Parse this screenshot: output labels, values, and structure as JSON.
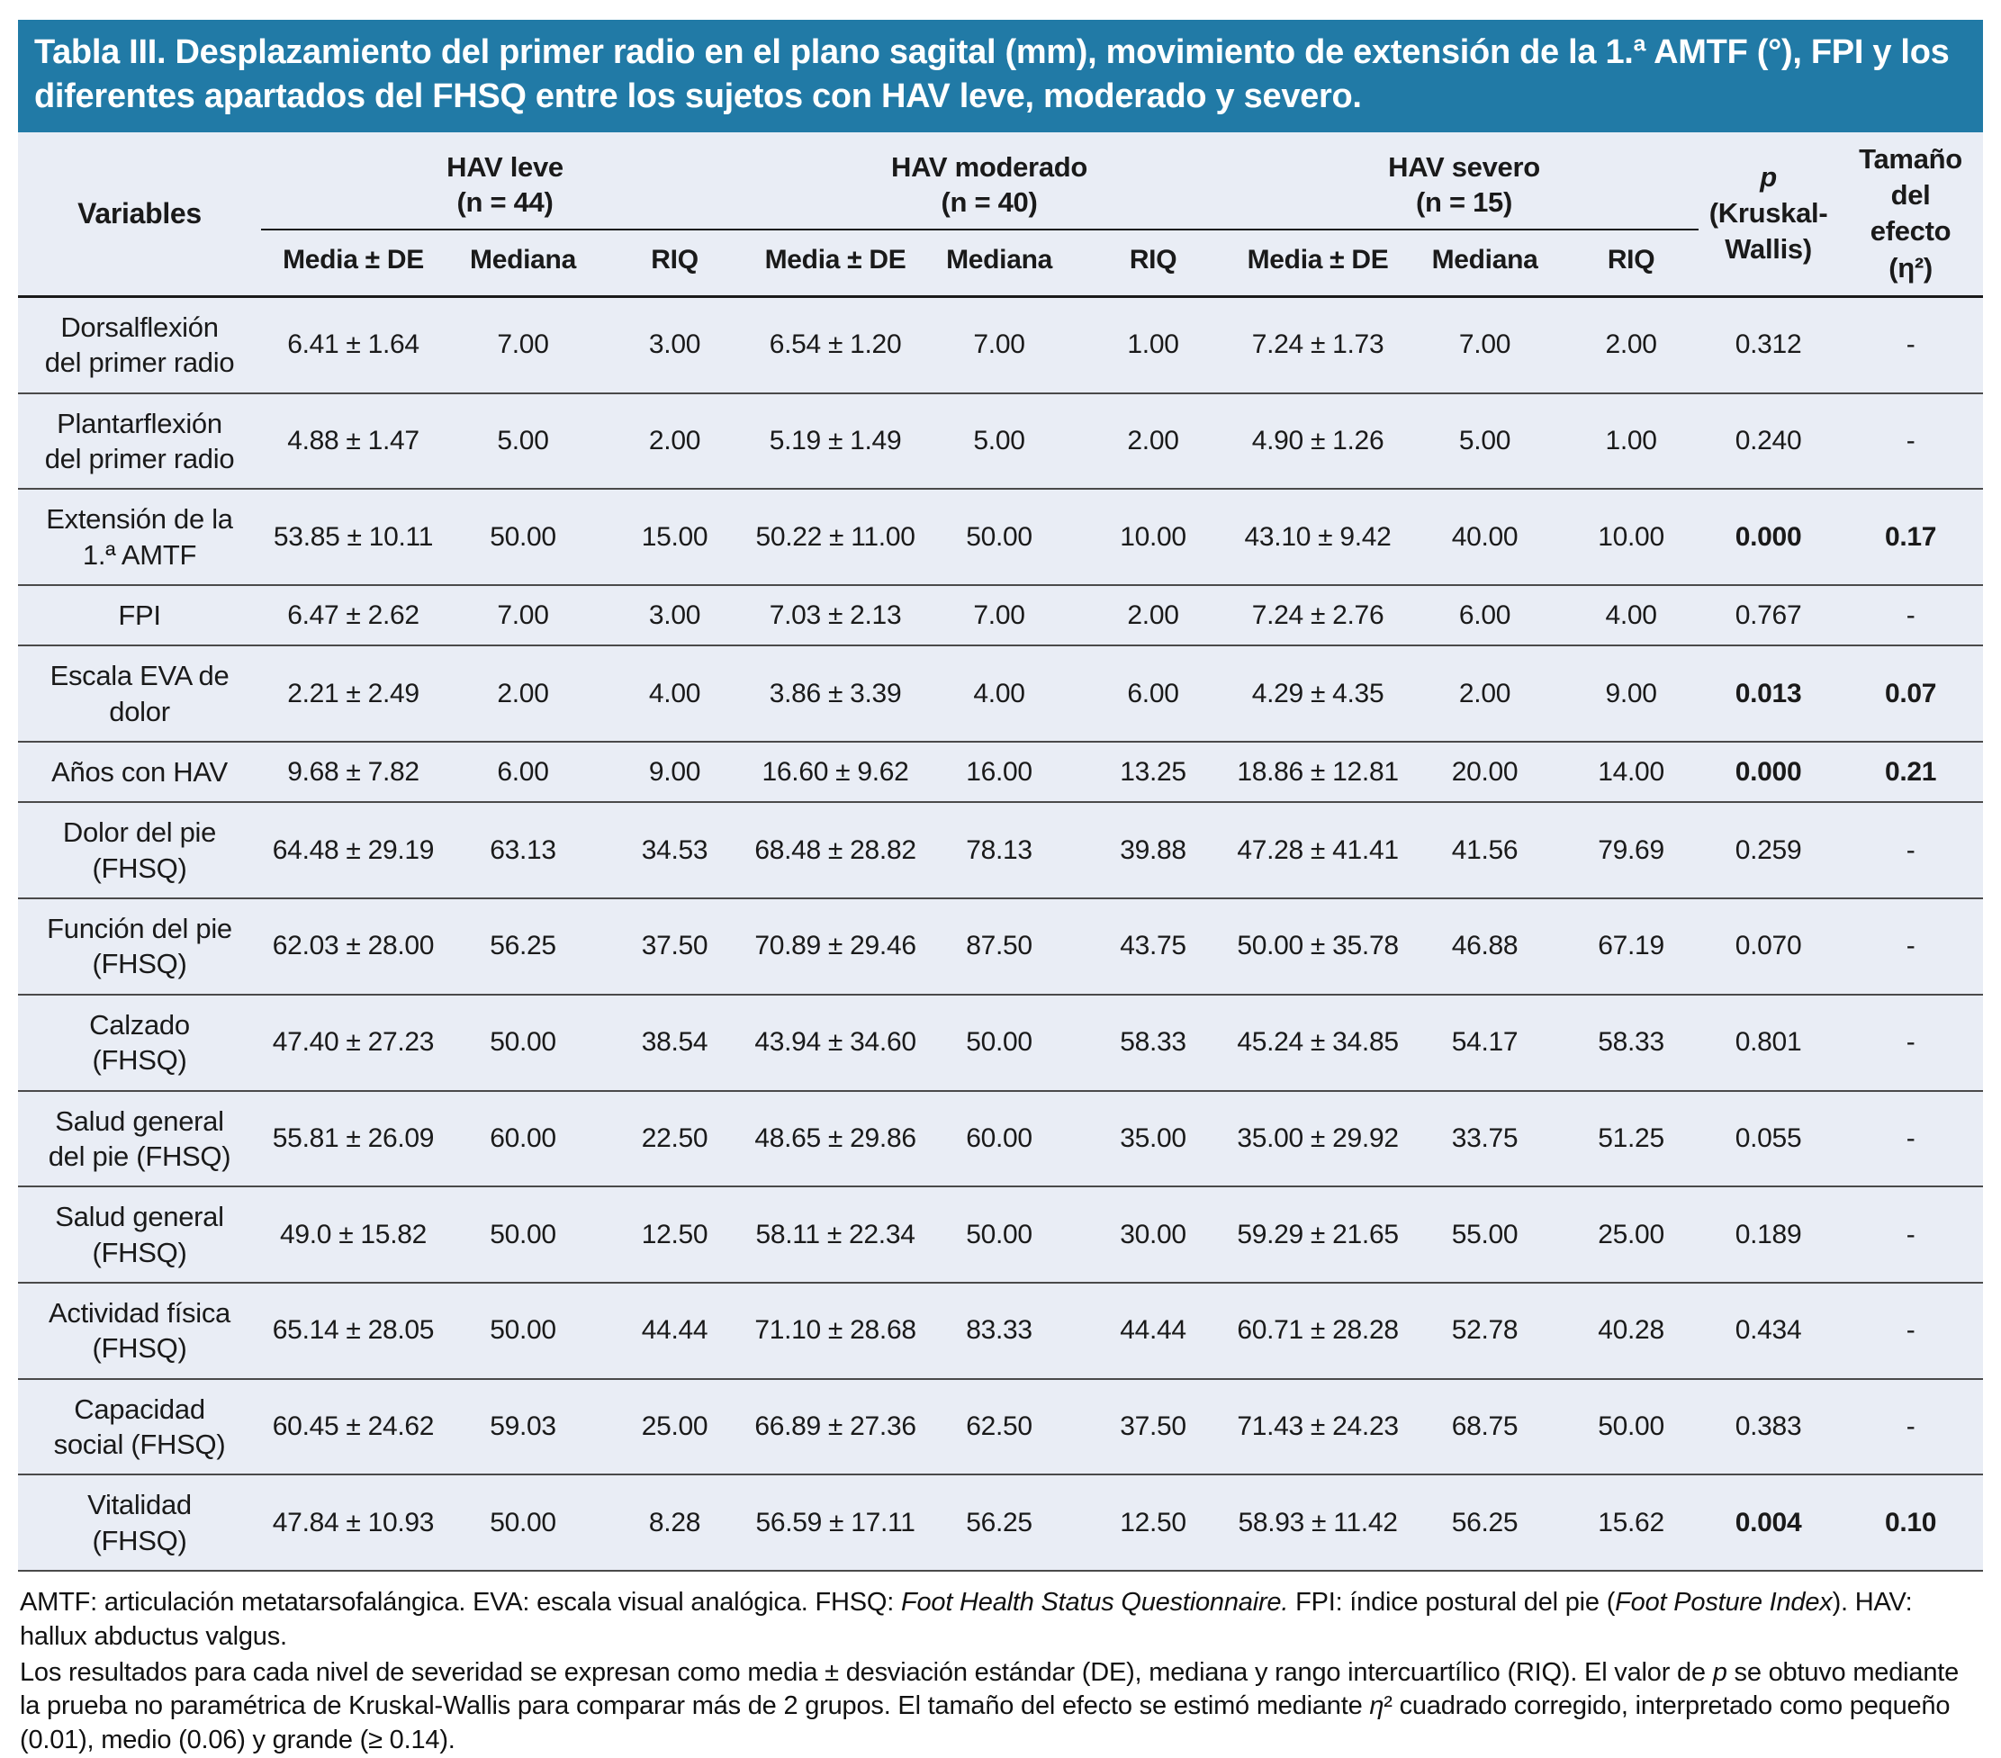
{
  "title": "Tabla III. Desplazamiento del primer radio en el plano sagital (mm), movimiento de extensión de la 1.ª AMTF (°), FPI y los diferentes apartados del FHSQ entre los sujetos con HAV leve, moderado y severo.",
  "accent_color": "#217aa6",
  "body_background": "#e9edf5",
  "header": {
    "variables": "Variables",
    "groups": [
      {
        "name": "HAV leve",
        "n": "(n = 44)"
      },
      {
        "name": "HAV moderado",
        "n": "(n = 40)"
      },
      {
        "name": "HAV severo",
        "n": "(n = 15)"
      }
    ],
    "subcols": [
      "Media ± DE",
      "Mediana",
      "RIQ"
    ],
    "p_col": {
      "lines": [
        "p",
        "(Kruskal-",
        "Wallis)"
      ]
    },
    "effect_col": {
      "lines": [
        "Tamaño",
        "del",
        "efecto",
        "(η²)"
      ]
    }
  },
  "rows": [
    {
      "label": "Dorsalflexión del primer radio",
      "values": [
        "6.41 ± 1.64",
        "7.00",
        "3.00",
        "6.54 ± 1.20",
        "7.00",
        "1.00",
        "7.24 ± 1.73",
        "7.00",
        "2.00"
      ],
      "p": "0.312",
      "effect": "-",
      "bold": false
    },
    {
      "label": "Plantarflexión del primer radio",
      "values": [
        "4.88 ± 1.47",
        "5.00",
        "2.00",
        "5.19 ± 1.49",
        "5.00",
        "2.00",
        "4.90 ± 1.26",
        "5.00",
        "1.00"
      ],
      "p": "0.240",
      "effect": "-",
      "bold": false
    },
    {
      "label": "Extensión de la 1.ª AMTF",
      "values": [
        "53.85 ± 10.11",
        "50.00",
        "15.00",
        "50.22 ± 11.00",
        "50.00",
        "10.00",
        "43.10 ± 9.42",
        "40.00",
        "10.00"
      ],
      "p": "0.000",
      "effect": "0.17",
      "bold": true
    },
    {
      "label": "FPI",
      "values": [
        "6.47 ± 2.62",
        "7.00",
        "3.00",
        "7.03 ± 2.13",
        "7.00",
        "2.00",
        "7.24 ± 2.76",
        "6.00",
        "4.00"
      ],
      "p": "0.767",
      "effect": "-",
      "bold": false
    },
    {
      "label": "Escala EVA de dolor",
      "values": [
        "2.21 ± 2.49",
        "2.00",
        "4.00",
        "3.86 ± 3.39",
        "4.00",
        "6.00",
        "4.29 ± 4.35",
        "2.00",
        "9.00"
      ],
      "p": "0.013",
      "effect": "0.07",
      "bold": true
    },
    {
      "label": "Años con HAV",
      "values": [
        "9.68 ± 7.82",
        "6.00",
        "9.00",
        "16.60 ± 9.62",
        "16.00",
        "13.25",
        "18.86 ± 12.81",
        "20.00",
        "14.00"
      ],
      "p": "0.000",
      "effect": "0.21",
      "bold": true
    },
    {
      "label": "Dolor del pie (FHSQ)",
      "values": [
        "64.48 ± 29.19",
        "63.13",
        "34.53",
        "68.48 ± 28.82",
        "78.13",
        "39.88",
        "47.28 ± 41.41",
        "41.56",
        "79.69"
      ],
      "p": "0.259",
      "effect": "-",
      "bold": false
    },
    {
      "label": "Función del pie (FHSQ)",
      "values": [
        "62.03 ± 28.00",
        "56.25",
        "37.50",
        "70.89 ± 29.46",
        "87.50",
        "43.75",
        "50.00 ± 35.78",
        "46.88",
        "67.19"
      ],
      "p": "0.070",
      "effect": "-",
      "bold": false
    },
    {
      "label": "Calzado (FHSQ)",
      "values": [
        "47.40 ± 27.23",
        "50.00",
        "38.54",
        "43.94 ± 34.60",
        "50.00",
        "58.33",
        "45.24 ± 34.85",
        "54.17",
        "58.33"
      ],
      "p": "0.801",
      "effect": "-",
      "bold": false
    },
    {
      "label": "Salud general del pie (FHSQ)",
      "values": [
        "55.81 ± 26.09",
        "60.00",
        "22.50",
        "48.65 ± 29.86",
        "60.00",
        "35.00",
        "35.00 ± 29.92",
        "33.75",
        "51.25"
      ],
      "p": "0.055",
      "effect": "-",
      "bold": false
    },
    {
      "label": "Salud general (FHSQ)",
      "values": [
        "49.0 ± 15.82",
        "50.00",
        "12.50",
        "58.11 ± 22.34",
        "50.00",
        "30.00",
        "59.29 ± 21.65",
        "55.00",
        "25.00"
      ],
      "p": "0.189",
      "effect": "-",
      "bold": false
    },
    {
      "label": "Actividad física (FHSQ)",
      "values": [
        "65.14 ± 28.05",
        "50.00",
        "44.44",
        "71.10 ± 28.68",
        "83.33",
        "44.44",
        "60.71 ± 28.28",
        "52.78",
        "40.28"
      ],
      "p": "0.434",
      "effect": "-",
      "bold": false
    },
    {
      "label": "Capacidad social (FHSQ)",
      "values": [
        "60.45 ± 24.62",
        "59.03",
        "25.00",
        "66.89 ± 27.36",
        "62.50",
        "37.50",
        "71.43 ± 24.23",
        "68.75",
        "50.00"
      ],
      "p": "0.383",
      "effect": "-",
      "bold": false
    },
    {
      "label": "Vitalidad (FHSQ)",
      "values": [
        "47.84 ± 10.93",
        "50.00",
        "8.28",
        "56.59 ± 17.11",
        "56.25",
        "12.50",
        "58.93 ± 11.42",
        "56.25",
        "15.62"
      ],
      "p": "0.004",
      "effect": "0.10",
      "bold": true
    }
  ],
  "footnotes": [
    [
      {
        "t": "AMTF: articulación metatarsofalángica. EVA: escala visual analógica. FHSQ: "
      },
      {
        "t": "Foot Health Status Questionnaire.",
        "i": true
      },
      {
        "t": " FPI: índice postural del pie ("
      },
      {
        "t": "Foot Posture Index",
        "i": true
      },
      {
        "t": "). HAV: hallux abductus valgus."
      }
    ],
    [
      {
        "t": "Los resultados para cada nivel de severidad se expresan como media ± desviación estándar (DE), mediana y rango intercuartílico (RIQ). El valor de "
      },
      {
        "t": "p",
        "i": true
      },
      {
        "t": " se obtuvo mediante la prueba no paramétrica de Kruskal-Wallis para comparar más de 2 grupos. El tamaño del efecto se estimó mediante "
      },
      {
        "t": "η",
        "i": true
      },
      {
        "t": "² cuadrado corregido, interpretado como pequeño (0.01), medio (0.06) y grande (≥ 0.14)."
      }
    ]
  ]
}
